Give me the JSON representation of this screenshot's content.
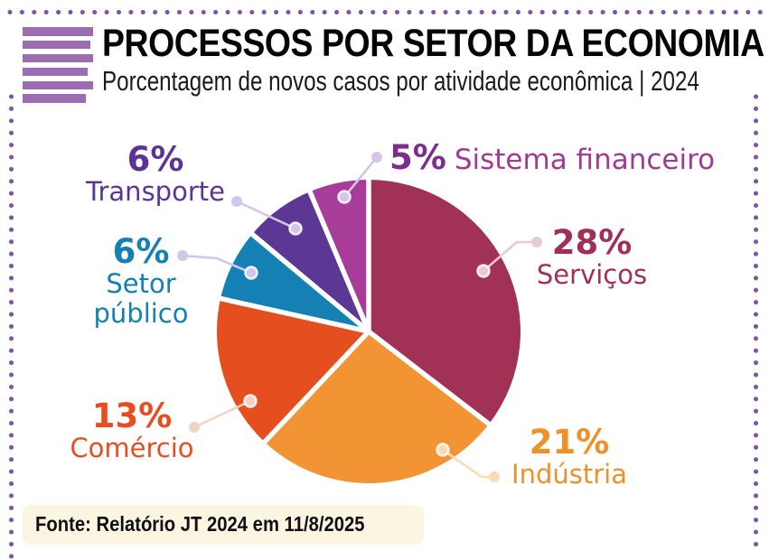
{
  "header": {
    "title": "PROCESSOS POR SETOR DA ECONOMIA",
    "subtitle": "Porcentagem de novos casos por atividade econômica | 2024"
  },
  "source": {
    "text": "Fonte: Relatório JT 2024 em 11/8/2025"
  },
  "accent_colors": {
    "frame_dots": "#7e55a3",
    "header_icon_bars": "#9c6db2",
    "source_box_bg": "#fbf5e2"
  },
  "chart_data": {
    "type": "pie",
    "title": "PROCESSOS POR SETOR DA ECONOMIA",
    "subtitle": "Porcentagem de novos casos por atividade econômica | 2024",
    "unit": "percent of new cases",
    "start_angle_deg": 0,
    "direction": "clockwise",
    "legend_position": "callout-labels-around-pie",
    "segments": [
      {
        "label": "Serviços",
        "value": 28,
        "pct_label": "28%",
        "color": "#a23156",
        "pct_color": "#a22f55",
        "name_color": "#a22f55",
        "leader_color": "#e6cbd7"
      },
      {
        "label": "Indústria",
        "value": 21,
        "pct_label": "21%",
        "color": "#f29334",
        "pct_color": "#ef9028",
        "name_color": "#ef9028",
        "leader_color": "#f8dcb4"
      },
      {
        "label": "Comércio",
        "value": 13,
        "pct_label": "13%",
        "color": "#e54e1f",
        "pct_color": "#e84d1e",
        "name_color": "#e84d1e",
        "leader_color": "#f3d2c6"
      },
      {
        "label": "Setor\npúblico",
        "value": 6,
        "pct_label": "6%",
        "color": "#1480b3",
        "pct_color": "#1480b3",
        "name_color": "#1480b3",
        "leader_color": "#d4c6e8"
      },
      {
        "label": "Transporte",
        "value": 6,
        "pct_label": "6%",
        "color": "#5c3793",
        "pct_color": "#5a3596",
        "name_color": "#5a3596",
        "leader_color": "#d4c6e8"
      },
      {
        "label": "Sistema financeiro",
        "value": 5,
        "pct_label": "5%",
        "color": "#a73c99",
        "pct_color": "#7c2d8e",
        "name_color": "#a23a92",
        "leader_color": "#d4c6e8"
      }
    ]
  }
}
